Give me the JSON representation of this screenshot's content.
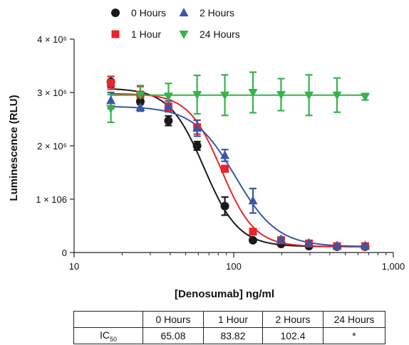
{
  "chart_data": {
    "type": "scatter",
    "title": "",
    "xlabel": "[Denosumab] ng/ml",
    "ylabel": "Luminescence (RLU)",
    "x_scale": "log",
    "xlim": [
      10,
      1000
    ],
    "ylim": [
      0,
      4000000
    ],
    "x_ticks": [
      {
        "value": 10,
        "label": "10"
      },
      {
        "value": 100,
        "label": "100"
      },
      {
        "value": 1000,
        "label": "1,000"
      }
    ],
    "y_ticks": [
      {
        "value": 0,
        "label": "0"
      },
      {
        "value": 1000000,
        "label": "1 × 106"
      },
      {
        "value": 2000000,
        "label": "2 × 10⁶"
      },
      {
        "value": 3000000,
        "label": "3 × 10⁶"
      },
      {
        "value": 4000000,
        "label": "4 × 10⁶"
      }
    ],
    "legend_position": "top",
    "series": [
      {
        "name": "0 Hours",
        "color": "#1a1a1a",
        "marker": "circle",
        "points": [
          {
            "x": 17,
            "y": 3200000,
            "err": 100000
          },
          {
            "x": 26,
            "y": 2830000,
            "err": 140000
          },
          {
            "x": 39,
            "y": 2470000,
            "err": 90000
          },
          {
            "x": 59,
            "y": 2000000,
            "err": 80000
          },
          {
            "x": 88,
            "y": 870000,
            "err": 170000
          },
          {
            "x": 132,
            "y": 230000,
            "err": 30000
          },
          {
            "x": 198,
            "y": 160000,
            "err": 20000
          },
          {
            "x": 296,
            "y": 120000,
            "err": 20000
          },
          {
            "x": 444,
            "y": 110000,
            "err": 20000
          },
          {
            "x": 666,
            "y": 110000,
            "err": 20000
          }
        ],
        "fit": {
          "top": 3080000,
          "bottom": 110000,
          "ic50": 65.08,
          "hill": 4.0
        }
      },
      {
        "name": "1 Hour",
        "color": "#e8262a",
        "marker": "square",
        "points": [
          {
            "x": 17,
            "y": 3180000,
            "err": 120000
          },
          {
            "x": 26,
            "y": 2960000,
            "err": 150000
          },
          {
            "x": 39,
            "y": 2720000,
            "err": 80000
          },
          {
            "x": 59,
            "y": 2350000,
            "err": 130000
          },
          {
            "x": 88,
            "y": 1570000,
            "err": 60000
          },
          {
            "x": 132,
            "y": 390000,
            "err": 40000
          },
          {
            "x": 198,
            "y": 230000,
            "err": 60000
          },
          {
            "x": 296,
            "y": 170000,
            "err": 40000
          },
          {
            "x": 444,
            "y": 120000,
            "err": 20000
          },
          {
            "x": 666,
            "y": 120000,
            "err": 20000
          }
        ],
        "fit": {
          "top": 2980000,
          "bottom": 110000,
          "ic50": 83.82,
          "hill": 4.2
        }
      },
      {
        "name": "2 Hours",
        "color": "#3a56a6",
        "marker": "triangle-up",
        "points": [
          {
            "x": 17,
            "y": 2850000,
            "err": 150000
          },
          {
            "x": 26,
            "y": 2720000,
            "err": 70000
          },
          {
            "x": 39,
            "y": 2740000,
            "err": 100000
          },
          {
            "x": 59,
            "y": 2330000,
            "err": 150000
          },
          {
            "x": 88,
            "y": 1820000,
            "err": 110000
          },
          {
            "x": 132,
            "y": 970000,
            "err": 230000
          },
          {
            "x": 198,
            "y": 250000,
            "err": 40000
          },
          {
            "x": 296,
            "y": 180000,
            "err": 40000
          },
          {
            "x": 444,
            "y": 130000,
            "err": 20000
          },
          {
            "x": 666,
            "y": 130000,
            "err": 20000
          }
        ],
        "fit": {
          "top": 2740000,
          "bottom": 110000,
          "ic50": 102.4,
          "hill": 3.3
        }
      },
      {
        "name": "24 Hours",
        "color": "#36b34a",
        "marker": "triangle-down",
        "points": [
          {
            "x": 17,
            "y": 2700000,
            "err": 260000
          },
          {
            "x": 26,
            "y": 2950000,
            "err": 180000
          },
          {
            "x": 39,
            "y": 2930000,
            "err": 240000
          },
          {
            "x": 59,
            "y": 2960000,
            "err": 360000
          },
          {
            "x": 88,
            "y": 2950000,
            "err": 380000
          },
          {
            "x": 132,
            "y": 3000000,
            "err": 380000
          },
          {
            "x": 198,
            "y": 2960000,
            "err": 300000
          },
          {
            "x": 296,
            "y": 2950000,
            "err": 380000
          },
          {
            "x": 444,
            "y": 2950000,
            "err": 320000
          },
          {
            "x": 666,
            "y": 2920000,
            "err": 60000
          }
        ],
        "fit": {
          "flat": 2950000
        }
      }
    ]
  },
  "table": {
    "headers": [
      "",
      "0 Hours",
      "1 Hour",
      "2 Hours",
      "24 Hours"
    ],
    "row_label_main": "IC",
    "row_label_sub": "50",
    "values": [
      "65.08",
      "83.82",
      "102.4",
      "*"
    ]
  }
}
